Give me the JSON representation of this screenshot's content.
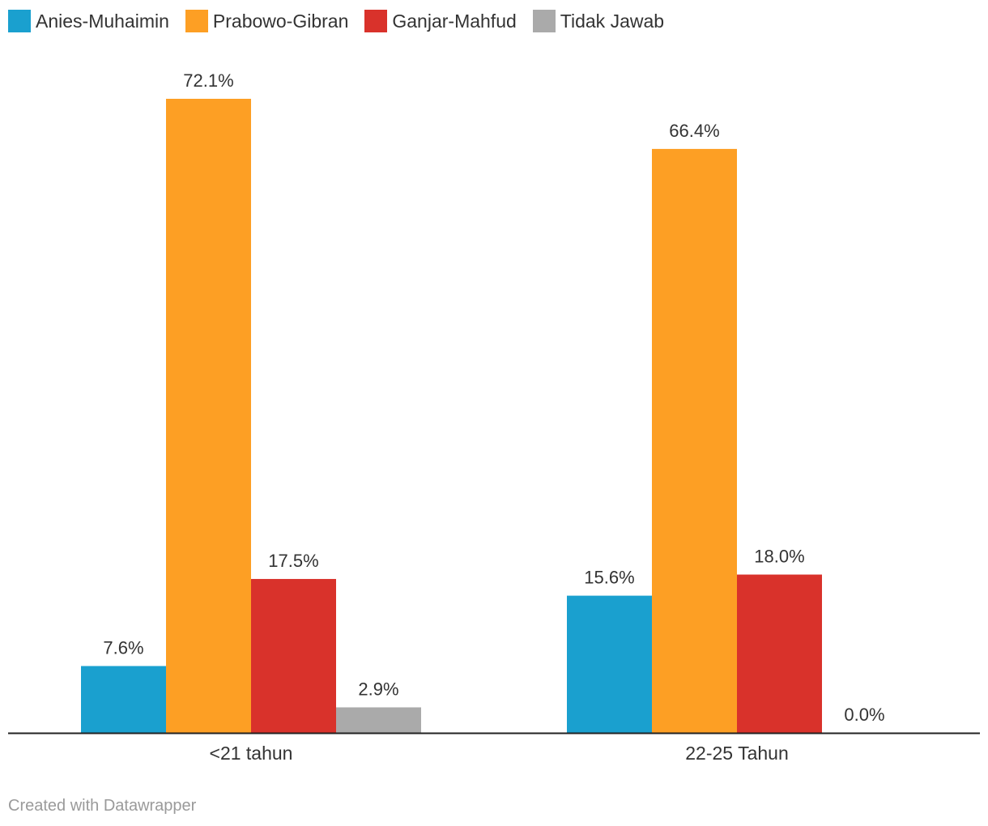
{
  "chart_data": {
    "type": "bar",
    "categories": [
      "<21 tahun",
      "22-25 Tahun"
    ],
    "series": [
      {
        "name": "Anies-Muhaimin",
        "color": "#1aa0cf",
        "values": [
          7.6,
          15.6
        ],
        "labels": [
          "7.6%",
          "15.6%"
        ]
      },
      {
        "name": "Prabowo-Gibran",
        "color": "#fd9f24",
        "values": [
          72.1,
          66.4
        ],
        "labels": [
          "72.1%",
          "66.4%"
        ]
      },
      {
        "name": "Ganjar-Mahfud",
        "color": "#d9322b",
        "values": [
          17.5,
          18.0
        ],
        "labels": [
          "17.5%",
          "18.0%"
        ]
      },
      {
        "name": "Tidak Jawab",
        "color": "#aaaaaa",
        "values": [
          2.9,
          0.0
        ],
        "labels": [
          "2.9%",
          "0.0%"
        ]
      }
    ],
    "ylim": [
      0,
      72.1
    ],
    "legend": "top-left",
    "grid": false
  },
  "footer": "Created with Datawrapper"
}
